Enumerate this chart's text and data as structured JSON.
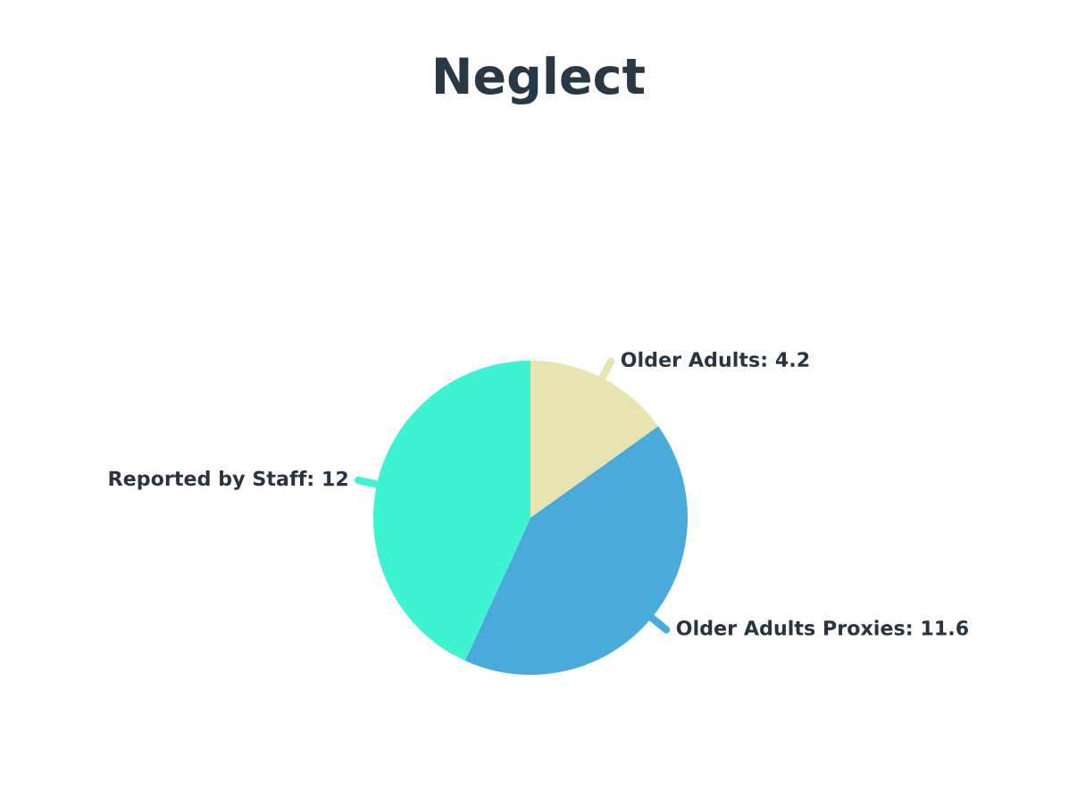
{
  "chart_data": {
    "type": "pie",
    "title": "Neglect",
    "categories": [
      "Older Adults",
      "Older Adults Proxies",
      "Reported by Staff"
    ],
    "values": [
      4.2,
      11.6,
      12
    ],
    "colors": [
      "#e8e4b2",
      "#4aaad9",
      "#3ef3d1"
    ],
    "value_labels": [
      ": 4.2",
      ": 11.6",
      ": 12"
    ]
  }
}
